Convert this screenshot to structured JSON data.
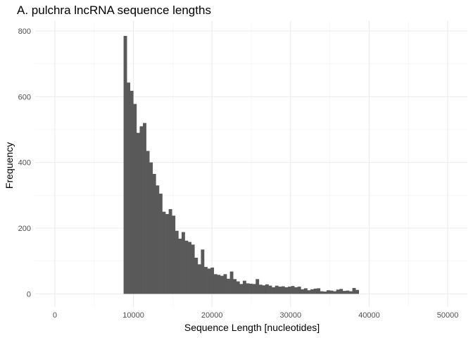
{
  "chart_data": {
    "type": "bar",
    "title": "A. pulchra lncRNA sequence lengths",
    "xlabel": "Sequence Length [nucleotides]",
    "ylabel": "Frequency",
    "xlim": [
      -2500,
      52500
    ],
    "ylim": [
      -40,
      830
    ],
    "x_ticks": [
      0,
      10000,
      20000,
      30000,
      40000,
      50000
    ],
    "x_tick_labels": [
      "0",
      "10000",
      "20000",
      "30000",
      "40000",
      "50000"
    ],
    "y_ticks": [
      0,
      200,
      400,
      600,
      800
    ],
    "y_tick_labels": [
      "0",
      "200",
      "400",
      "600",
      "800"
    ],
    "grid": true,
    "bar_color": "#595959",
    "bins": {
      "start": 8750,
      "width": 410,
      "values": [
        785,
        643,
        618,
        578,
        490,
        510,
        520,
        435,
        400,
        365,
        330,
        305,
        250,
        243,
        258,
        238,
        192,
        168,
        188,
        162,
        158,
        150,
        110,
        90,
        135,
        82,
        77,
        80,
        60,
        58,
        55,
        60,
        46,
        68,
        45,
        38,
        30,
        40,
        32,
        31,
        30,
        45,
        28,
        26,
        29,
        25,
        20,
        25,
        22,
        23,
        20,
        22,
        24,
        20,
        22,
        14,
        17,
        11,
        14,
        16,
        17,
        8,
        7,
        11,
        10,
        8,
        13,
        15,
        9,
        10,
        8,
        18,
        12
      ]
    }
  }
}
